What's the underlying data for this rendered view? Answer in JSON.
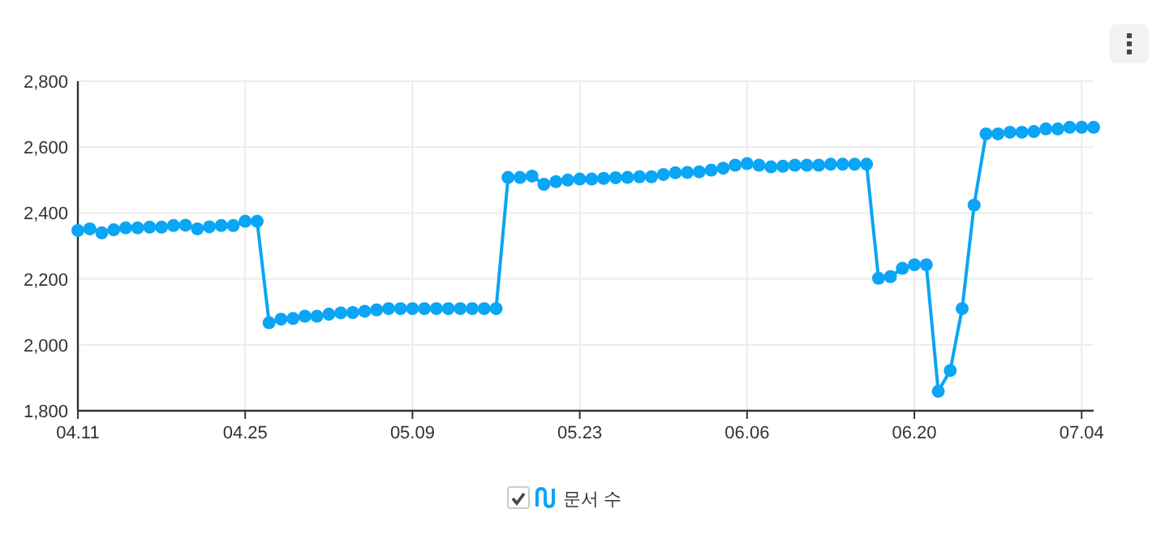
{
  "chart_data": {
    "type": "line",
    "x": [
      "--04-11",
      "--04-12",
      "--04-13",
      "--04-14",
      "--04-15",
      "--04-16",
      "--04-17",
      "--04-18",
      "--04-19",
      "--04-20",
      "--04-21",
      "--04-22",
      "--04-23",
      "--04-24",
      "--04-25",
      "--04-26",
      "--04-27",
      "--04-28",
      "--04-29",
      "--04-30",
      "--05-01",
      "--05-02",
      "--05-03",
      "--05-04",
      "--05-05",
      "--05-06",
      "--05-07",
      "--05-08",
      "--05-09",
      "--05-10",
      "--05-11",
      "--05-12",
      "--05-13",
      "--05-14",
      "--05-15",
      "--05-16",
      "--05-17",
      "--05-18",
      "--05-19",
      "--05-20",
      "--05-21",
      "--05-22",
      "--05-23",
      "--05-24",
      "--05-25",
      "--05-26",
      "--05-27",
      "--05-28",
      "--05-29",
      "--05-30",
      "--05-31",
      "--06-01",
      "--06-02",
      "--06-03",
      "--06-04",
      "--06-05",
      "--06-06",
      "--06-07",
      "--06-08",
      "--06-09",
      "--06-10",
      "--06-11",
      "--06-12",
      "--06-13",
      "--06-14",
      "--06-15",
      "--06-16",
      "--06-17",
      "--06-18",
      "--06-19",
      "--06-20",
      "--06-21",
      "--06-22",
      "--06-23",
      "--06-24",
      "--06-25",
      "--06-26",
      "--06-27",
      "--06-28",
      "--06-29",
      "--06-30",
      "--07-01",
      "--07-02",
      "--07-03",
      "--07-04",
      "--07-05"
    ],
    "series": [
      {
        "name": "문서 수",
        "color": "#0aa5f5",
        "values": [
          2347,
          2352,
          2340,
          2349,
          2355,
          2355,
          2357,
          2357,
          2362,
          2363,
          2352,
          2358,
          2362,
          2362,
          2375,
          2375,
          2067,
          2078,
          2080,
          2087,
          2087,
          2093,
          2097,
          2098,
          2102,
          2106,
          2110,
          2110,
          2110,
          2110,
          2110,
          2110,
          2110,
          2110,
          2110,
          2110,
          2508,
          2508,
          2512,
          2487,
          2495,
          2500,
          2503,
          2503,
          2505,
          2507,
          2508,
          2510,
          2510,
          2517,
          2522,
          2523,
          2525,
          2530,
          2536,
          2545,
          2550,
          2545,
          2540,
          2542,
          2545,
          2545,
          2545,
          2548,
          2548,
          2548,
          2548,
          2202,
          2207,
          2232,
          2243,
          2243,
          1859,
          1922,
          2110,
          2424,
          2640,
          2640,
          2645,
          2645,
          2647,
          2655,
          2655,
          2660,
          2660,
          2660
        ]
      }
    ],
    "xlim": [
      "--04-11",
      "--07-05"
    ],
    "xticks": [
      {
        "value": "--04-11",
        "label": "04.11"
      },
      {
        "value": "--04-25",
        "label": "04.25"
      },
      {
        "value": "--05-09",
        "label": "05.09"
      },
      {
        "value": "--05-23",
        "label": "05.23"
      },
      {
        "value": "--06-06",
        "label": "06.06"
      },
      {
        "value": "--06-20",
        "label": "06.20"
      },
      {
        "value": "--07-04",
        "label": "07.04"
      }
    ],
    "ylim": [
      1800,
      2800
    ],
    "yticks": [
      {
        "value": 1800,
        "label": "1,800"
      },
      {
        "value": 2000,
        "label": "2,000"
      },
      {
        "value": 2200,
        "label": "2,200"
      },
      {
        "value": 2400,
        "label": "2,400"
      },
      {
        "value": 2600,
        "label": "2,600"
      },
      {
        "value": 2800,
        "label": "2,800"
      }
    ],
    "grid": true,
    "legend": "bottom",
    "marker": "circle",
    "line_style": "solid"
  }
}
